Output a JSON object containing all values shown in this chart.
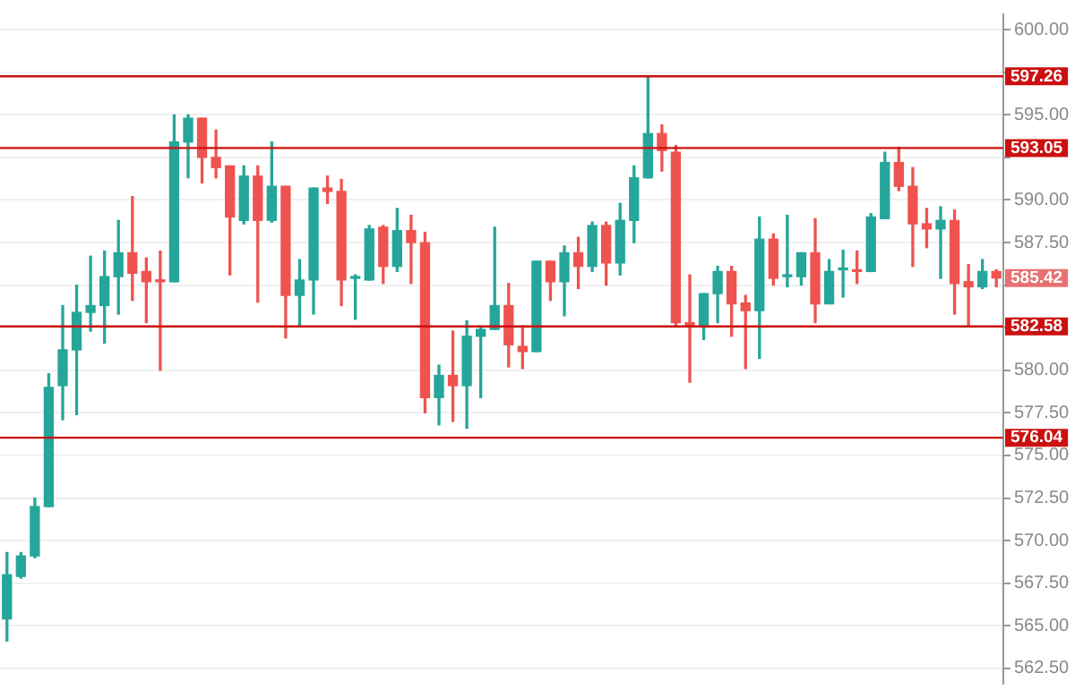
{
  "chart_data": {
    "type": "candlestick",
    "categories": [
      null,
      null,
      null,
      null,
      null,
      null,
      null,
      null,
      null,
      null,
      null,
      null,
      null,
      null,
      null,
      null,
      null,
      null,
      null,
      null,
      null,
      null,
      null,
      null,
      null,
      null,
      null,
      null,
      null,
      null,
      null,
      null,
      null,
      null,
      null,
      null,
      null,
      null,
      null,
      null,
      null,
      null,
      null,
      null,
      null,
      null,
      null,
      null,
      null,
      null,
      null,
      null,
      null,
      null,
      null,
      null,
      null,
      null,
      null,
      null,
      null,
      null,
      null,
      null,
      null,
      null,
      null,
      null,
      null,
      null,
      null,
      null
    ],
    "ohlc": [
      [
        565.4,
        569.3,
        564.1,
        568.0
      ],
      [
        567.9,
        569.3,
        567.8,
        569.1
      ],
      [
        569.1,
        572.5,
        569.0,
        572.0
      ],
      [
        572.0,
        579.8,
        572.0,
        579.0
      ],
      [
        579.1,
        583.8,
        577.1,
        581.2
      ],
      [
        581.2,
        585.0,
        577.4,
        583.4
      ],
      [
        583.4,
        586.7,
        582.3,
        583.8
      ],
      [
        583.8,
        587.0,
        581.6,
        585.5
      ],
      [
        585.5,
        588.8,
        583.3,
        586.9
      ],
      [
        586.9,
        590.2,
        584.1,
        585.7
      ],
      [
        585.8,
        586.6,
        582.8,
        585.2
      ],
      [
        585.25,
        587.0,
        580.0,
        585.2
      ],
      [
        585.2,
        595.0,
        585.2,
        593.4
      ],
      [
        593.4,
        595.0,
        591.3,
        594.8
      ],
      [
        594.8,
        594.8,
        591.0,
        592.5
      ],
      [
        592.5,
        594.1,
        591.3,
        591.9
      ],
      [
        592.0,
        592.0,
        585.6,
        589.0
      ],
      [
        588.8,
        592.0,
        588.6,
        591.4
      ],
      [
        591.4,
        592.0,
        584.0,
        588.8
      ],
      [
        588.8,
        593.4,
        588.7,
        590.8
      ],
      [
        590.8,
        590.8,
        581.9,
        584.4
      ],
      [
        584.4,
        586.5,
        582.6,
        585.3
      ],
      [
        585.3,
        590.7,
        583.3,
        590.7
      ],
      [
        590.7,
        591.4,
        589.8,
        590.5
      ],
      [
        590.5,
        591.2,
        583.8,
        585.3
      ],
      [
        585.4,
        585.6,
        583.0,
        585.5
      ],
      [
        585.3,
        588.5,
        585.3,
        588.3
      ],
      [
        588.4,
        588.5,
        585.1,
        586.1
      ],
      [
        586.1,
        589.5,
        585.8,
        588.2
      ],
      [
        588.2,
        589.1,
        585.1,
        587.5
      ],
      [
        587.5,
        588.1,
        577.5,
        578.4
      ],
      [
        578.4,
        580.3,
        576.8,
        579.7
      ],
      [
        579.7,
        582.3,
        577.0,
        579.1
      ],
      [
        579.1,
        582.9,
        576.6,
        582.0
      ],
      [
        582.0,
        582.6,
        578.4,
        582.4
      ],
      [
        582.4,
        588.4,
        582.4,
        583.8
      ],
      [
        583.8,
        585.1,
        580.2,
        581.5
      ],
      [
        581.4,
        582.6,
        580.1,
        581.1
      ],
      [
        581.1,
        586.4,
        581.1,
        586.4
      ],
      [
        586.4,
        586.4,
        584.1,
        585.2
      ],
      [
        585.2,
        587.3,
        583.2,
        586.9
      ],
      [
        586.9,
        587.8,
        584.8,
        586.1
      ],
      [
        586.1,
        588.7,
        585.8,
        588.5
      ],
      [
        588.5,
        588.7,
        585.0,
        586.3
      ],
      [
        586.3,
        589.8,
        585.6,
        588.8
      ],
      [
        588.8,
        592.0,
        587.5,
        591.3
      ],
      [
        591.3,
        597.3,
        591.3,
        593.9
      ],
      [
        593.9,
        594.4,
        591.7,
        592.9
      ],
      [
        592.8,
        593.2,
        582.6,
        582.8
      ],
      [
        582.8,
        585.6,
        579.3,
        582.6
      ],
      [
        582.6,
        584.5,
        581.8,
        584.5
      ],
      [
        584.5,
        586.1,
        582.8,
        585.8
      ],
      [
        585.8,
        586.1,
        582.0,
        583.9
      ],
      [
        583.95,
        584.4,
        580.1,
        583.5
      ],
      [
        583.5,
        589.0,
        580.7,
        587.7
      ],
      [
        587.7,
        588.0,
        585.0,
        585.4
      ],
      [
        585.5,
        589.1,
        584.9,
        585.6
      ],
      [
        585.5,
        586.9,
        585.0,
        586.9
      ],
      [
        586.9,
        588.9,
        582.8,
        583.9
      ],
      [
        583.9,
        586.5,
        583.9,
        585.8
      ],
      [
        585.9,
        587.05,
        584.3,
        585.9
      ],
      [
        585.85,
        587.0,
        585.1,
        585.8
      ],
      [
        585.8,
        589.2,
        585.8,
        589.0
      ],
      [
        588.9,
        592.8,
        588.9,
        592.2
      ],
      [
        592.2,
        593.1,
        590.55,
        590.8
      ],
      [
        590.8,
        591.9,
        586.1,
        588.6
      ],
      [
        588.6,
        589.5,
        587.2,
        588.3
      ],
      [
        588.3,
        589.6,
        585.4,
        588.8
      ],
      [
        588.8,
        589.4,
        583.3,
        585.1
      ],
      [
        585.2,
        586.2,
        582.6,
        584.9
      ],
      [
        584.9,
        586.5,
        584.8,
        585.8
      ],
      [
        585.8,
        585.9,
        584.9,
        585.42
      ]
    ],
    "ylim": [
      561.6,
      600.9
    ],
    "yticks": [
      {
        "value": 562.5,
        "label": "562.50"
      },
      {
        "value": 565,
        "label": "565.00"
      },
      {
        "value": 567.5,
        "label": "567.50"
      },
      {
        "value": 570,
        "label": "570.00"
      },
      {
        "value": 572.5,
        "label": "572.50"
      },
      {
        "value": 575,
        "label": "575.00"
      },
      {
        "value": 577.5,
        "label": "577.50"
      },
      {
        "value": 580,
        "label": "580.00"
      },
      {
        "value": 582.5,
        "label": null
      },
      {
        "value": 585,
        "label": null
      },
      {
        "value": 587.5,
        "label": "587.50"
      },
      {
        "value": 590,
        "label": "590.00"
      },
      {
        "value": 592.5,
        "label": null
      },
      {
        "value": 595,
        "label": "595.00"
      },
      {
        "value": 597.5,
        "label": null
      },
      {
        "value": 600,
        "label": "600.00"
      }
    ],
    "tick_labels": "y",
    "grid": "y",
    "ref_lines": [
      {
        "axis": "y",
        "value": 597.26,
        "label": "597.26",
        "color": "#cc1010"
      },
      {
        "axis": "y",
        "value": 593.05,
        "label": "593.05",
        "color": "#cc1010"
      },
      {
        "axis": "y",
        "value": 582.58,
        "label": "582.58",
        "color": "#cc1010"
      },
      {
        "axis": "y",
        "value": 576.04,
        "label": "576.04",
        "color": "#cc1010"
      }
    ],
    "annotations": [
      "585.42"
    ]
  }
}
